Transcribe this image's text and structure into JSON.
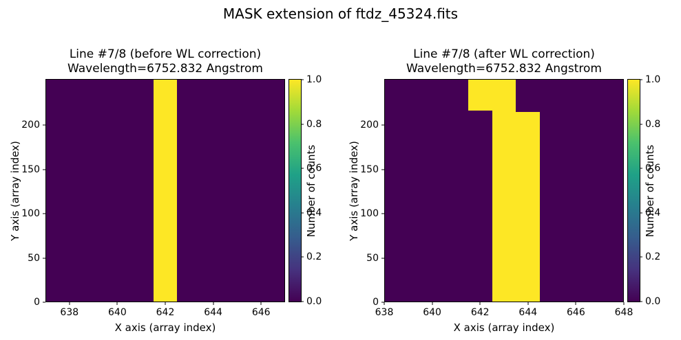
{
  "figure_title": "MASK extension of ftdz_45324.fits",
  "colors": {
    "figure_background": "#ffffff",
    "text": "#000000",
    "value_low": "#440154",
    "value_high": "#fde725",
    "viridis_stops": [
      "#440154",
      "#46327e",
      "#365c8d",
      "#277f8e",
      "#1fa187",
      "#4ac16d",
      "#a0da39",
      "#fde725"
    ]
  },
  "chart_data": [
    {
      "type": "heatmap",
      "title_lines": [
        "Line #7/8 (before WL correction)",
        "Wavelength=6752.832 Angstrom"
      ],
      "xlabel": "X axis (array index)",
      "ylabel": "Y axis (array index)",
      "xlim": [
        637,
        647
      ],
      "ylim": [
        0,
        252
      ],
      "xticks": [
        638,
        640,
        642,
        644,
        646
      ],
      "yticks": [
        0,
        50,
        100,
        150,
        200
      ],
      "colormap": "viridis",
      "background_value": 0,
      "colorbar_label": "Number of counts",
      "colorbar_ticks": [
        "0.0",
        "0.2",
        "0.4",
        "0.6",
        "0.8",
        "1.0"
      ],
      "colorbar_range": [
        0.0,
        1.0
      ],
      "mask_regions": [
        {
          "x_range": [
            641.5,
            642.5
          ],
          "y_range": [
            0,
            252
          ],
          "value": 1
        }
      ]
    },
    {
      "type": "heatmap",
      "title_lines": [
        "Line #7/8 (after WL correction)",
        "Wavelength=6752.832 Angstrom"
      ],
      "xlabel": "X axis (array index)",
      "ylabel": "Y axis (array index)",
      "xlim": [
        638,
        648
      ],
      "ylim": [
        0,
        252
      ],
      "xticks": [
        638,
        640,
        642,
        644,
        646,
        648
      ],
      "yticks": [
        0,
        50,
        100,
        150,
        200
      ],
      "colormap": "viridis",
      "background_value": 0,
      "colorbar_label": "Number of counts",
      "colorbar_ticks": [
        "0.0",
        "0.2",
        "0.4",
        "0.6",
        "0.8",
        "1.0"
      ],
      "colorbar_range": [
        0.0,
        1.0
      ],
      "mask_regions": [
        {
          "x_range": [
            641.5,
            642.5
          ],
          "y_range": [
            217,
            252
          ],
          "value": 1
        },
        {
          "x_range": [
            642.5,
            643.5
          ],
          "y_range": [
            0,
            252
          ],
          "value": 1
        },
        {
          "x_range": [
            643.5,
            644.5
          ],
          "y_range": [
            0,
            215
          ],
          "value": 1
        }
      ]
    }
  ]
}
